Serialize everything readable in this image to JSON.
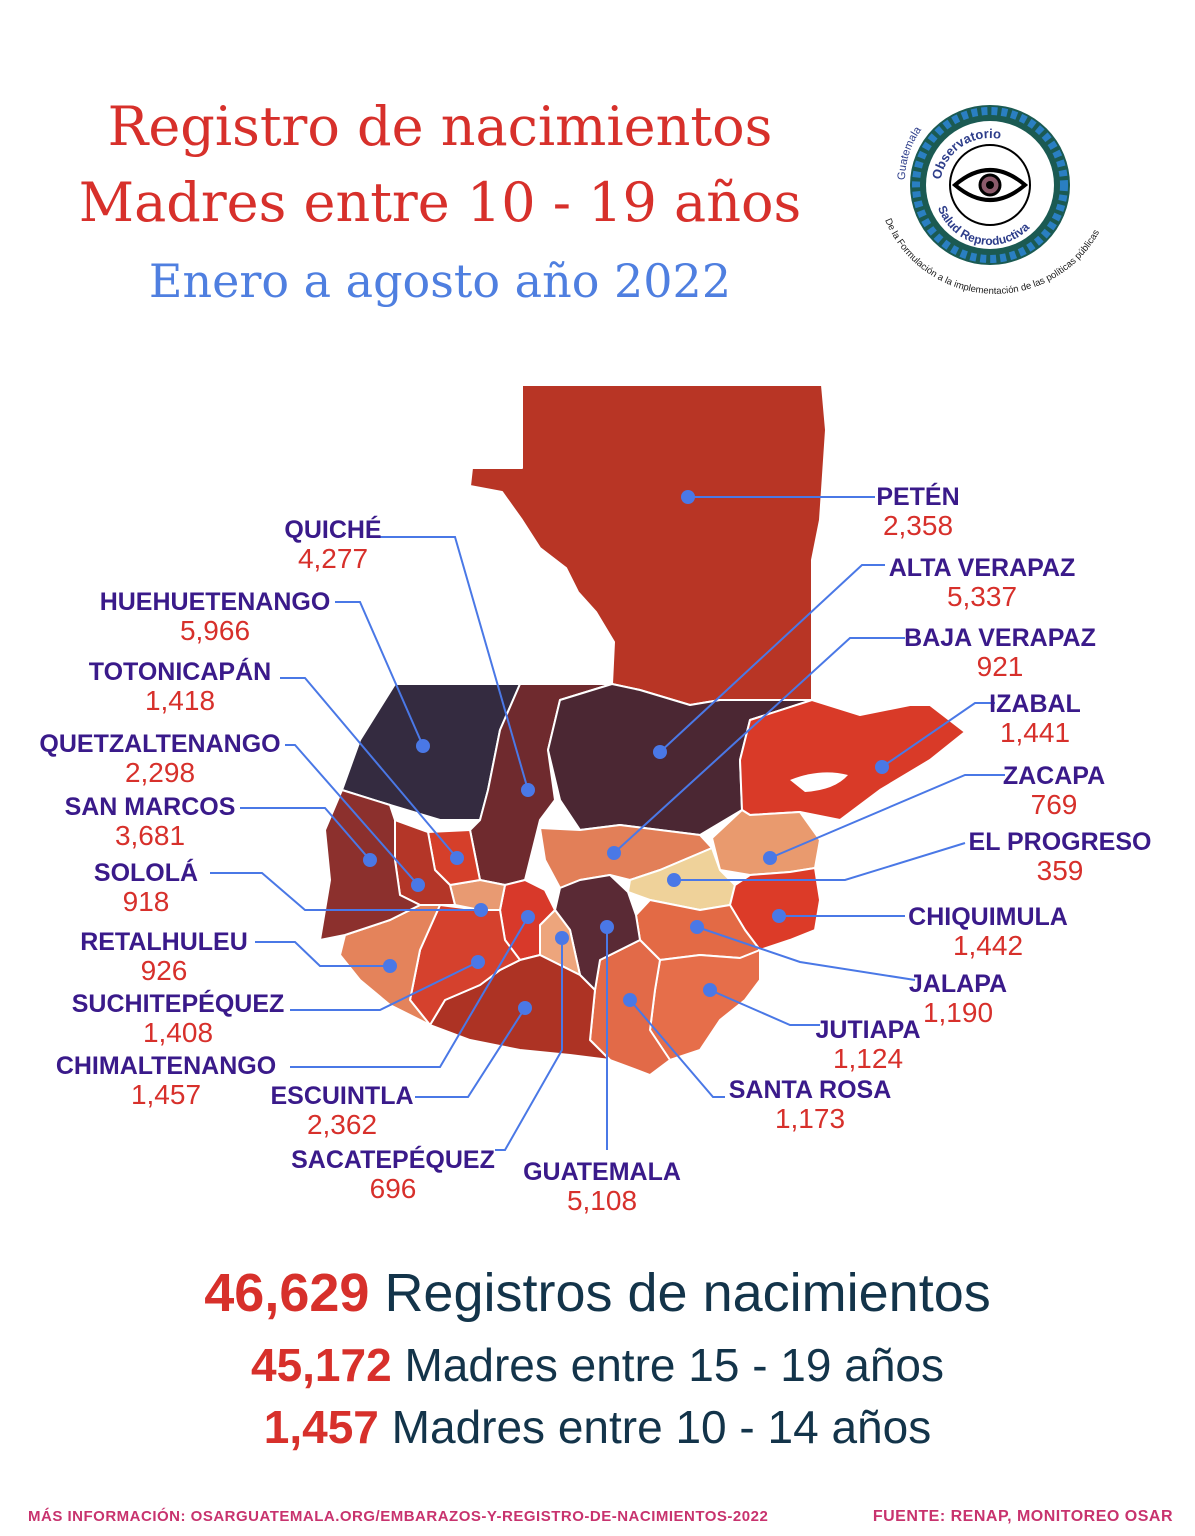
{
  "header": {
    "title_line1": "Registro de nacimientos",
    "title_line2": "Madres entre 10 - 19 años",
    "subtitle": "Enero a agosto año 2022"
  },
  "logo": {
    "top_text": "Guatemala",
    "ring_text_1": "Observatorio",
    "ring_text_2": "Salud Reproductiva",
    "bottom_text": "De la Formulación a la implementación de las políticas públicas",
    "icon": "eye-icon"
  },
  "departments": [
    {
      "id": "peten",
      "name": "PETÉN",
      "value": "2,358",
      "color": "#b83525"
    },
    {
      "id": "quiche",
      "name": "QUICHÉ",
      "value": "4,277",
      "color": "#6f2a2e"
    },
    {
      "id": "alta-verapaz",
      "name": "ALTA VERAPAZ",
      "value": "5,337",
      "color": "#4b2733"
    },
    {
      "id": "huehuetenango",
      "name": "HUEHUETENANGO",
      "value": "5,966",
      "color": "#342b40"
    },
    {
      "id": "baja-verapaz",
      "name": "BAJA VERAPAZ",
      "value": "921",
      "color": "#e27f58"
    },
    {
      "id": "totonicapan",
      "name": "TOTONICAPÁN",
      "value": "1,418",
      "color": "#d53f2a"
    },
    {
      "id": "izabal",
      "name": "IZABAL",
      "value": "1,441",
      "color": "#d93a28"
    },
    {
      "id": "quetzaltenango",
      "name": "QUETZALTENANGO",
      "value": "2,298",
      "color": "#b43628"
    },
    {
      "id": "zacapa",
      "name": "ZACAPA",
      "value": "769",
      "color": "#e99a6e"
    },
    {
      "id": "san-marcos",
      "name": "SAN MARCOS",
      "value": "3,681",
      "color": "#8c302d"
    },
    {
      "id": "el-progreso",
      "name": "EL PROGRESO",
      "value": "359",
      "color": "#efd29a"
    },
    {
      "id": "solola",
      "name": "SOLOLÁ",
      "value": "918",
      "color": "#e89a72"
    },
    {
      "id": "chiquimula",
      "name": "CHIQUIMULA",
      "value": "1,442",
      "color": "#dc3b28"
    },
    {
      "id": "retalhuleu",
      "name": "RETALHULEU",
      "value": "926",
      "color": "#e4835b"
    },
    {
      "id": "jalapa",
      "name": "JALAPA",
      "value": "1,190",
      "color": "#e36a45"
    },
    {
      "id": "suchitepequez",
      "name": "SUCHITEPÉQUEZ",
      "value": "1,408",
      "color": "#d5412d"
    },
    {
      "id": "jutiapa",
      "name": "JUTIAPA",
      "value": "1,124",
      "color": "#e66e4a"
    },
    {
      "id": "chimaltenango",
      "name": "CHIMALTENANGO",
      "value": "1,457",
      "color": "#d8392a"
    },
    {
      "id": "escuintla",
      "name": "ESCUINTLA",
      "value": "2,362",
      "color": "#ad3324"
    },
    {
      "id": "santa-rosa",
      "name": "SANTA ROSA",
      "value": "1,173",
      "color": "#e26a48"
    },
    {
      "id": "sacatepequez",
      "name": "SACATEPÉQUEZ",
      "value": "696",
      "color": "#eda57c"
    },
    {
      "id": "guatemala",
      "name": "GUATEMALA",
      "value": "5,108",
      "color": "#5a2a35"
    }
  ],
  "totals": {
    "total_value": "46,629",
    "total_label": "Registros de nacimientos",
    "age15_19_value": "45,172",
    "age15_19_label": "Madres entre 15 - 19 años",
    "age10_14_value": "1,457",
    "age10_14_label": "Madres entre 10 - 14 años"
  },
  "footer": {
    "more_info": "MÁS INFORMACIÓN: OSARGUATEMALA.ORG/EMBARAZOS-Y-REGISTRO-DE-NACIMIENTOS-2022",
    "source": "FUENTE: RENAP, MONITOREO OSAR"
  },
  "colors": {
    "title": "#d7302b",
    "subtitle": "#4f7fe0",
    "label": "#3a1a8a",
    "value": "#d7302b",
    "leader": "#4a78e6",
    "footer": "#c8336e"
  }
}
